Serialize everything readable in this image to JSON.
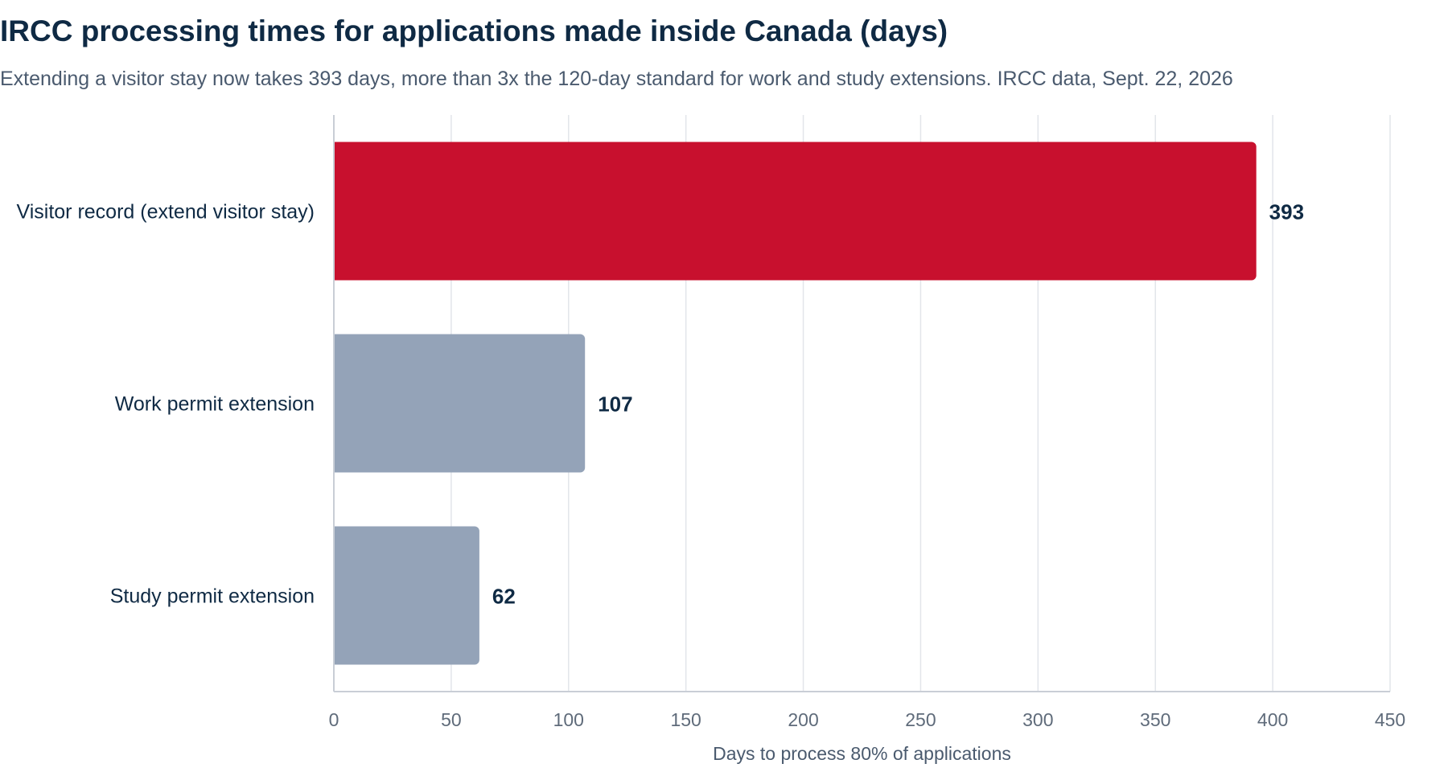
{
  "title": "IRCC processing times for applications made inside Canada (days)",
  "subtitle": "Extending a visitor stay now takes 393 days, more than 3x the 120-day standard for work and study extensions. IRCC data, Sept. 22, 2026",
  "colors": {
    "highlight": "#c8102e",
    "muted": "#94a3b8",
    "grid": "#e2e5ea",
    "axis": "#c9ced6",
    "text": "#0f2a44"
  },
  "chart_data": {
    "type": "bar",
    "orientation": "horizontal",
    "title": "IRCC processing times for applications made inside Canada (days)",
    "subtitle": "Extending a visitor stay now takes 393 days, more than 3x the 120-day standard for work and study extensions. IRCC data, Sept. 22, 2026",
    "categories": [
      "Visitor record (extend visitor stay)",
      "Work permit extension",
      "Study permit extension"
    ],
    "values": [
      393,
      107,
      62
    ],
    "highlight": [
      true,
      false,
      false
    ],
    "xlabel": "Days to process 80% of applications",
    "ylabel": "",
    "xlim": [
      0,
      450
    ],
    "xticks": [
      0,
      50,
      100,
      150,
      200,
      250,
      300,
      350,
      400,
      450
    ],
    "grid": "vertical",
    "data_labels": true
  }
}
